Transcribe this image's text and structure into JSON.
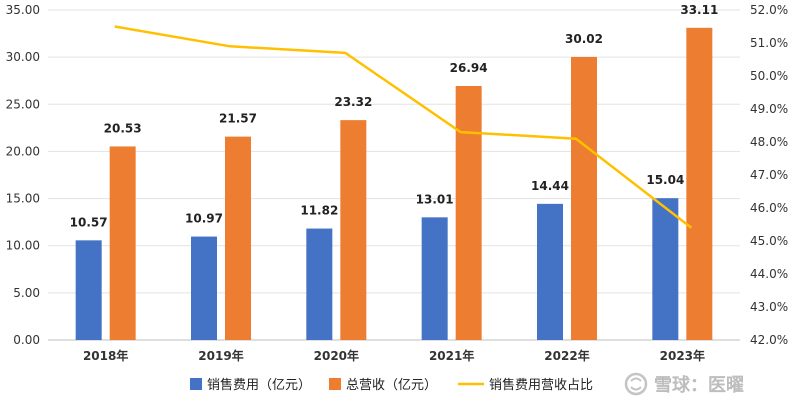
{
  "chart_data": {
    "type": "bar",
    "categories": [
      "2018年",
      "2019年",
      "2020年",
      "2021年",
      "2022年",
      "2023年"
    ],
    "series": [
      {
        "name": "销售费用（亿元）",
        "type": "bar",
        "axis": "left",
        "color": "#4472C4",
        "values": [
          10.57,
          10.97,
          11.82,
          13.01,
          14.44,
          15.04
        ],
        "labels": [
          "10.57",
          "10.97",
          "11.82",
          "13.01",
          "14.44",
          "15.04"
        ]
      },
      {
        "name": "总营收（亿元）",
        "type": "bar",
        "axis": "left",
        "color": "#ED7D31",
        "values": [
          20.53,
          21.57,
          23.32,
          26.94,
          30.02,
          33.11
        ],
        "labels": [
          "20.53",
          "21.57",
          "23.32",
          "26.94",
          "30.02",
          "33.11"
        ]
      },
      {
        "name": "销售费用营收占比",
        "type": "line",
        "axis": "right",
        "color": "#FFC000",
        "values": [
          51.5,
          50.9,
          50.7,
          48.3,
          48.1,
          45.4
        ]
      }
    ],
    "left_axis": {
      "ylim": [
        0,
        35
      ],
      "ticks": [
        0,
        5,
        10,
        15,
        20,
        25,
        30,
        35
      ],
      "tick_labels": [
        "0.00",
        "5.00",
        "10.00",
        "15.00",
        "20.00",
        "25.00",
        "30.00",
        "35.00"
      ]
    },
    "right_axis": {
      "ylim": [
        42,
        52
      ],
      "ticks": [
        42,
        43,
        44,
        45,
        46,
        47,
        48,
        49,
        50,
        51,
        52
      ],
      "tick_labels": [
        "42.0%",
        "43.0%",
        "44.0%",
        "45.0%",
        "46.0%",
        "47.0%",
        "48.0%",
        "49.0%",
        "50.0%",
        "51.0%",
        "52.0%"
      ]
    },
    "grid": true,
    "legend_position": "bottom"
  },
  "watermark": {
    "text": "雪球：医曜",
    "icon": "snowball-logo-icon"
  }
}
